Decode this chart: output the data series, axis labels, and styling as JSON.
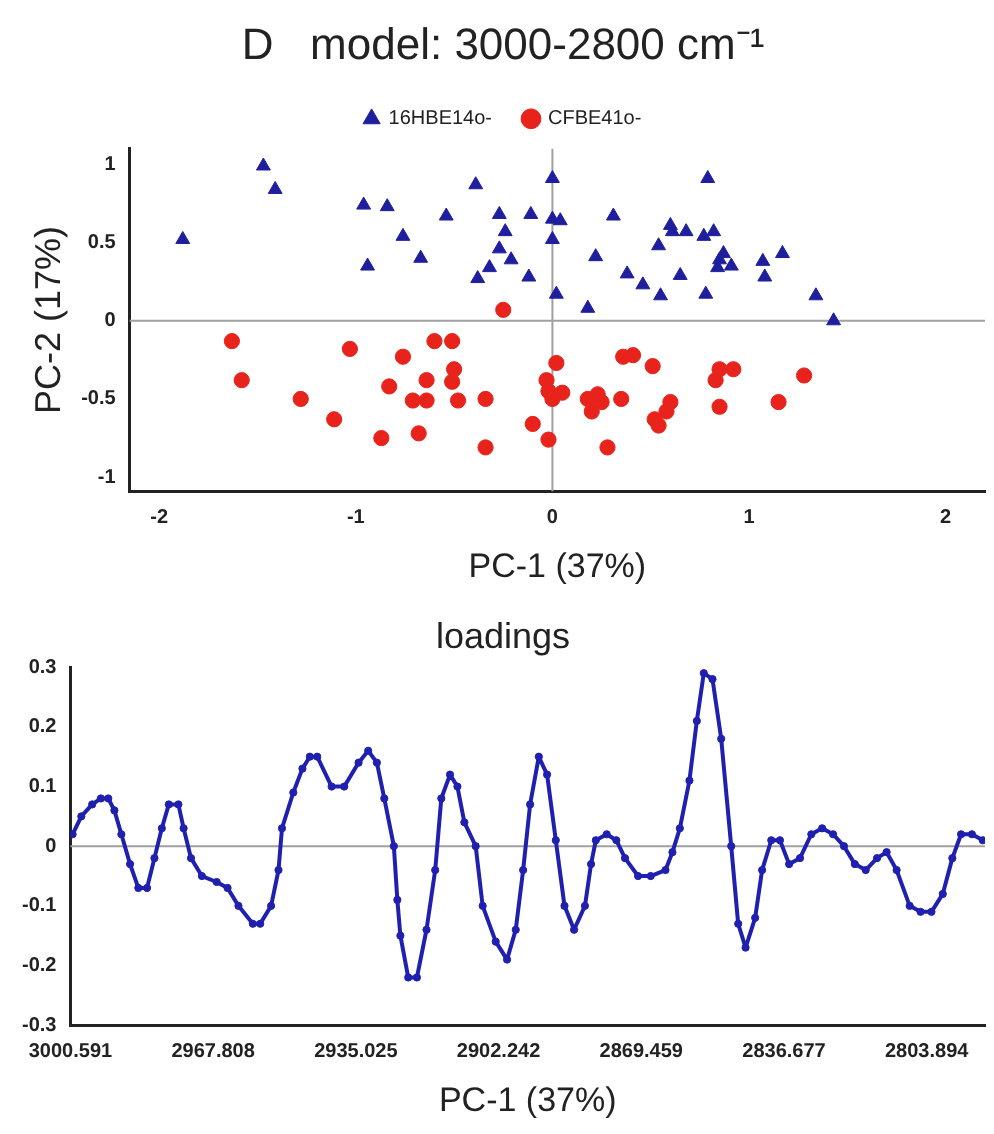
{
  "chart_data": [
    {
      "type": "scatter",
      "title": "D   model: 3000-2800 cm⁻¹",
      "xlabel": "PC-1 (37%)",
      "ylabel": "PC-2 (17%)",
      "xlim": [
        -2.15,
        2.2
      ],
      "ylim": [
        -1.09,
        1.1
      ],
      "xticks": [
        -2,
        -1,
        0,
        1,
        2
      ],
      "yticks": [
        -1,
        -0.5,
        0,
        0.5,
        1
      ],
      "grid": false,
      "legend": "top",
      "ref_lines": [
        {
          "axis": "x",
          "value": 0,
          "color": "#a0a0a0"
        },
        {
          "axis": "y",
          "value": 0,
          "color": "#a0a0a0"
        }
      ],
      "series": [
        {
          "name": "16HBE14o-",
          "color": "#1f1f9e",
          "marker": "triangle",
          "x": [
            -1.88,
            -0.96,
            -0.84,
            -0.76,
            -0.94,
            -0.67,
            -0.54,
            -0.27,
            -0.24,
            -0.27,
            -0.32,
            -0.38,
            -0.21,
            -0.11,
            -0.12,
            0.0,
            0.04,
            0.0,
            0.02,
            0.18,
            0.22,
            0.31,
            0.38,
            0.46,
            0.55,
            0.54,
            0.6,
            0.61,
            0.68,
            0.65,
            0.78,
            0.77,
            0.82,
            0.87,
            0.84,
            0.91,
            0.85,
            1.07,
            1.08,
            1.17,
            1.34,
            1.43,
            -1.47,
            -1.41,
            -0.39,
            0.0,
            0.79
          ],
          "values": [
            0.52,
            0.74,
            0.73,
            0.54,
            0.35,
            0.4,
            0.67,
            0.68,
            0.57,
            0.46,
            0.34,
            0.27,
            0.39,
            0.68,
            0.28,
            0.65,
            0.64,
            0.52,
            0.17,
            0.08,
            0.41,
            0.67,
            0.3,
            0.23,
            0.16,
            0.48,
            0.61,
            0.57,
            0.57,
            0.29,
            0.17,
            0.54,
            0.57,
            0.43,
            0.34,
            0.35,
            0.39,
            0.38,
            0.28,
            0.43,
            0.16,
            0.0,
            0.99,
            0.84,
            0.87,
            0.91,
            0.91
          ]
        },
        {
          "name": "CFBE41o-",
          "color": "#e8231b",
          "marker": "circle",
          "x": [
            -0.25,
            -1.63,
            -1.58,
            -1.28,
            -1.11,
            -1.03,
            -0.87,
            -0.83,
            -0.76,
            -0.71,
            -0.68,
            -0.64,
            -0.64,
            -0.6,
            -0.51,
            -0.5,
            -0.51,
            -0.48,
            -0.34,
            -0.34,
            -0.1,
            -0.02,
            0.02,
            -0.03,
            -0.02,
            0.0,
            0.05,
            0.18,
            0.2,
            0.23,
            0.25,
            0.28,
            0.35,
            0.36,
            0.41,
            0.51,
            0.52,
            0.54,
            0.58,
            0.6,
            0.83,
            0.85,
            0.92,
            0.85,
            1.15,
            1.28
          ],
          "values": [
            0.07,
            -0.13,
            -0.38,
            -0.5,
            -0.63,
            -0.18,
            -0.75,
            -0.42,
            -0.23,
            -0.51,
            -0.72,
            -0.51,
            -0.38,
            -0.13,
            -0.13,
            -0.31,
            -0.39,
            -0.51,
            -0.5,
            -0.81,
            -0.66,
            -0.76,
            -0.27,
            -0.38,
            -0.45,
            -0.5,
            -0.46,
            -0.5,
            -0.58,
            -0.47,
            -0.52,
            -0.81,
            -0.5,
            -0.23,
            -0.22,
            -0.29,
            -0.63,
            -0.67,
            -0.58,
            -0.52,
            -0.38,
            -0.31,
            -0.31,
            -0.55,
            -0.52,
            -0.35
          ]
        }
      ]
    },
    {
      "type": "line",
      "title": "loadings",
      "xlabel": "PC-1 (37%)",
      "xlim": [
        3000.591,
        2790.5
      ],
      "ylim": [
        -0.3,
        0.3
      ],
      "xticks": [
        3000.591,
        2967.808,
        2935.025,
        2902.242,
        2869.459,
        2836.677,
        2803.894
      ],
      "yticks": [
        -0.3,
        -0.2,
        -0.1,
        0,
        0.1,
        0.2,
        0.3
      ],
      "grid": false,
      "legend": false,
      "marker": "circle",
      "line_style": "solid",
      "ref_lines": [
        {
          "axis": "y",
          "value": 0,
          "color": "#a0a0a0"
        }
      ],
      "series": [
        {
          "color": "#2020b0",
          "x": [
            3000.1,
            2998.1,
            2995.6,
            2993.6,
            2991.9,
            2990.5,
            2988.9,
            2986.9,
            2985.0,
            2983.0,
            2981.3,
            2979.6,
            2978.0,
            2975.8,
            2974.6,
            2972.9,
            2970.4,
            2967.0,
            2964.5,
            2962.0,
            2958.7,
            2957.0,
            2954.5,
            2952.8,
            2952.0,
            2949.4,
            2947.3,
            2945.6,
            2943.9,
            2940.6,
            2937.7,
            2934.4,
            2932.2,
            2930.2,
            2928.5,
            2926.3,
            2925.5,
            2924.8,
            2923.0,
            2921.0,
            2918.8,
            2916.8,
            2915.4,
            2913.4,
            2911.7,
            2910.1,
            2907.5,
            2905.9,
            2902.9,
            2900.3,
            2898.3,
            2896.6,
            2895.0,
            2893.0,
            2891.1,
            2889.1,
            2887.1,
            2884.9,
            2882.4,
            2881.0,
            2879.9,
            2877.4,
            2875.2,
            2873.2,
            2870.2,
            2867.3,
            2863.9,
            2862.3,
            2860.6,
            2858.4,
            2856.7,
            2855.1,
            2853.1,
            2851.1,
            2848.8,
            2847.2,
            2845.5,
            2843.3,
            2841.7,
            2839.6,
            2837.6,
            2835.5,
            2833.0,
            2830.4,
            2827.9,
            2825.4,
            2822.9,
            2820.4,
            2817.9,
            2815.3,
            2813.1,
            2810.8,
            2807.8,
            2805.3,
            2802.8,
            2800.2,
            2798.0,
            2796.0,
            2793.5,
            2791.0
          ],
          "values": [
            0.02,
            0.05,
            0.07,
            0.08,
            0.08,
            0.06,
            0.02,
            -0.03,
            -0.07,
            -0.07,
            -0.02,
            0.03,
            0.07,
            0.07,
            0.03,
            -0.02,
            -0.05,
            -0.06,
            -0.07,
            -0.1,
            -0.13,
            -0.13,
            -0.1,
            -0.04,
            0.03,
            0.09,
            0.13,
            0.15,
            0.15,
            0.1,
            0.1,
            0.14,
            0.16,
            0.14,
            0.08,
            0.0,
            -0.09,
            -0.15,
            -0.22,
            -0.22,
            -0.14,
            -0.04,
            0.08,
            0.12,
            0.1,
            0.04,
            0.0,
            -0.1,
            -0.16,
            -0.19,
            -0.14,
            -0.04,
            0.07,
            0.15,
            0.12,
            0.01,
            -0.1,
            -0.14,
            -0.1,
            -0.03,
            0.01,
            0.02,
            0.01,
            -0.02,
            -0.05,
            -0.05,
            -0.04,
            -0.01,
            0.03,
            0.11,
            0.21,
            0.29,
            0.28,
            0.18,
            0.0,
            -0.13,
            -0.17,
            -0.12,
            -0.04,
            0.01,
            0.01,
            -0.03,
            -0.02,
            0.02,
            0.03,
            0.02,
            0.0,
            -0.03,
            -0.04,
            -0.02,
            -0.01,
            -0.04,
            -0.1,
            -0.11,
            -0.11,
            -0.08,
            -0.02,
            0.02,
            0.02,
            0.01
          ]
        }
      ]
    }
  ]
}
